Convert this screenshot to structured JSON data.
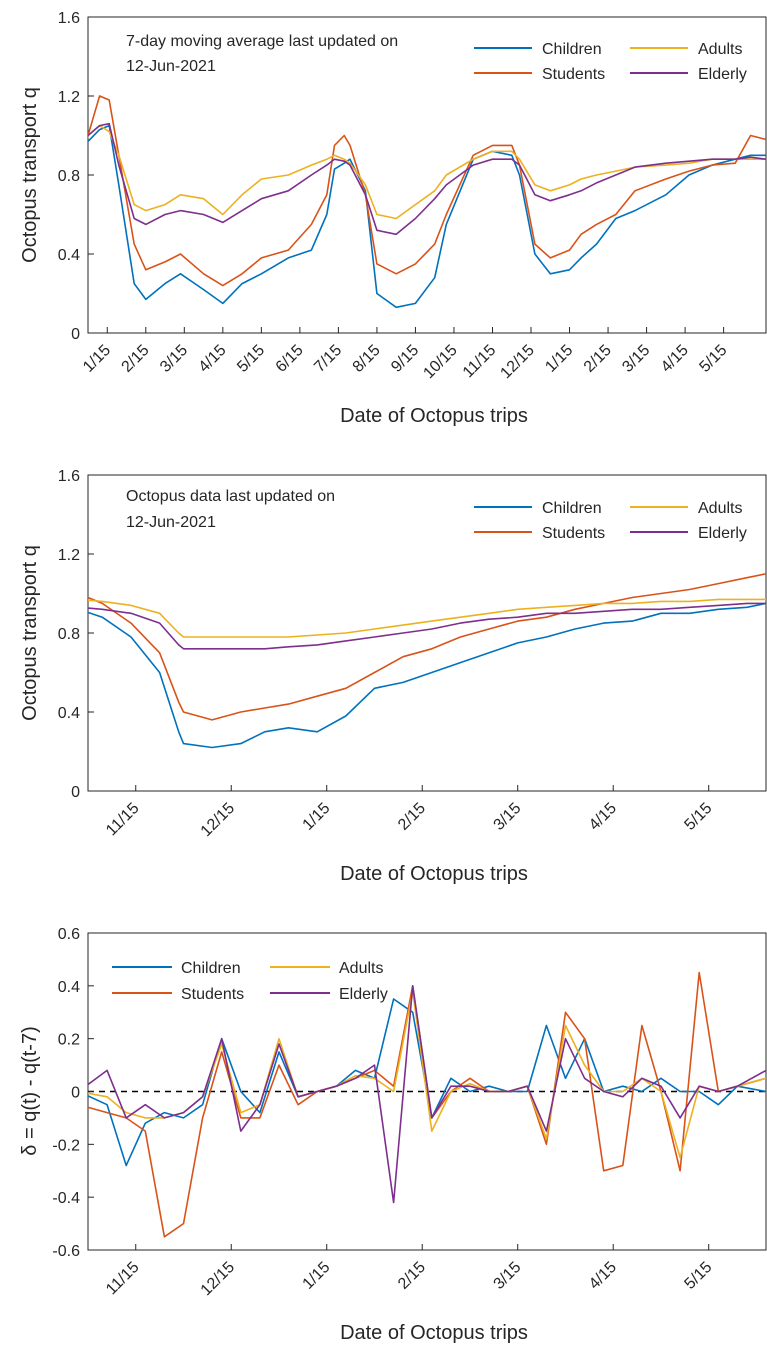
{
  "colors": {
    "Children": "#0072BD",
    "Students": "#D95319",
    "Adults": "#EDB120",
    "Elderly": "#7E2F8E",
    "axis": "#262626"
  },
  "chart_data": [
    {
      "type": "line",
      "annotation_line1": "7-day moving average last updated on",
      "annotation_line2": "12-Jun-2021",
      "xlabel": "Date of Octopus trips",
      "ylabel": "Octopus transport q",
      "xticks": [
        "1/15",
        "2/15",
        "3/15",
        "4/15",
        "5/15",
        "6/15",
        "7/15",
        "8/15",
        "9/15",
        "10/15",
        "11/15",
        "12/15",
        "1/15",
        "2/15",
        "3/15",
        "4/15",
        "5/15"
      ],
      "yticks": [
        "0",
        "0.4",
        "0.8",
        "1.2",
        "1.6"
      ],
      "ylim": [
        0,
        1.6
      ],
      "xlim": [
        0,
        17.6
      ],
      "legend": [
        "Children",
        "Students",
        "Adults",
        "Elderly"
      ],
      "legend_location": "top-right",
      "series": [
        {
          "name": "Children",
          "x": [
            -0.2,
            0,
            0.3,
            0.55,
            0.8,
            1.2,
            1.5,
            2,
            2.4,
            3,
            3.5,
            4,
            4.5,
            5.2,
            5.8,
            6.2,
            6.4,
            6.65,
            6.8,
            7.2,
            7.5,
            8,
            8.5,
            9,
            9.3,
            10,
            10.5,
            11,
            11.2,
            11.6,
            12,
            12.5,
            12.8,
            13.2,
            13.7,
            14.2,
            15,
            15.6,
            16.2,
            16.8,
            17.2,
            17.6
          ],
          "values": [
            0.95,
            0.97,
            1.03,
            1.05,
            0.75,
            0.25,
            0.17,
            0.25,
            0.3,
            0.22,
            0.15,
            0.25,
            0.3,
            0.38,
            0.42,
            0.6,
            0.83,
            0.86,
            0.88,
            0.72,
            0.2,
            0.13,
            0.15,
            0.28,
            0.55,
            0.88,
            0.92,
            0.9,
            0.8,
            0.4,
            0.3,
            0.32,
            0.38,
            0.45,
            0.58,
            0.62,
            0.7,
            0.8,
            0.85,
            0.88,
            0.9,
            0.9
          ]
        },
        {
          "name": "Students",
          "x": [
            -0.2,
            0,
            0.3,
            0.55,
            0.8,
            1.2,
            1.5,
            2,
            2.4,
            3,
            3.5,
            4,
            4.5,
            5.2,
            5.8,
            6.2,
            6.4,
            6.65,
            6.8,
            7.2,
            7.5,
            8,
            8.5,
            9,
            9.3,
            10,
            10.5,
            11,
            11.2,
            11.6,
            12,
            12.5,
            12.8,
            13.2,
            13.7,
            14.2,
            15,
            15.6,
            16.2,
            16.8,
            17.2,
            17.6
          ],
          "values": [
            0.82,
            1.0,
            1.2,
            1.18,
            0.9,
            0.45,
            0.32,
            0.36,
            0.4,
            0.3,
            0.24,
            0.3,
            0.38,
            0.42,
            0.55,
            0.7,
            0.95,
            1.0,
            0.95,
            0.7,
            0.35,
            0.3,
            0.35,
            0.45,
            0.6,
            0.9,
            0.95,
            0.95,
            0.85,
            0.45,
            0.38,
            0.42,
            0.5,
            0.55,
            0.6,
            0.72,
            0.78,
            0.82,
            0.85,
            0.86,
            1.0,
            0.98
          ]
        },
        {
          "name": "Adults",
          "x": [
            -0.2,
            0,
            0.3,
            0.55,
            0.8,
            1.2,
            1.5,
            2,
            2.4,
            3,
            3.5,
            4,
            4.5,
            5.2,
            5.8,
            6.2,
            6.4,
            6.65,
            6.8,
            7.2,
            7.5,
            8,
            8.5,
            9,
            9.3,
            10,
            10.5,
            11,
            11.2,
            11.6,
            12,
            12.5,
            12.8,
            13.2,
            13.7,
            14.2,
            15,
            15.6,
            16.2,
            16.8,
            17.2,
            17.6
          ],
          "values": [
            0.95,
            1.0,
            1.05,
            1.02,
            0.9,
            0.65,
            0.62,
            0.65,
            0.7,
            0.68,
            0.6,
            0.7,
            0.78,
            0.8,
            0.85,
            0.88,
            0.9,
            0.88,
            0.86,
            0.75,
            0.6,
            0.58,
            0.65,
            0.72,
            0.8,
            0.88,
            0.92,
            0.92,
            0.88,
            0.75,
            0.72,
            0.75,
            0.78,
            0.8,
            0.82,
            0.84,
            0.85,
            0.86,
            0.88,
            0.88,
            0.88,
            0.88
          ]
        },
        {
          "name": "Elderly",
          "x": [
            -0.2,
            0,
            0.3,
            0.55,
            0.8,
            1.2,
            1.5,
            2,
            2.4,
            3,
            3.5,
            4,
            4.5,
            5.2,
            5.8,
            6.2,
            6.4,
            6.65,
            6.8,
            7.2,
            7.5,
            8,
            8.5,
            9,
            9.3,
            10,
            10.5,
            11,
            11.2,
            11.6,
            12,
            12.5,
            12.8,
            13.2,
            13.7,
            14.2,
            15,
            15.6,
            16.2,
            16.8,
            17.2,
            17.6
          ],
          "values": [
            0.92,
            1.0,
            1.05,
            1.06,
            0.85,
            0.58,
            0.55,
            0.6,
            0.62,
            0.6,
            0.56,
            0.62,
            0.68,
            0.72,
            0.8,
            0.85,
            0.88,
            0.87,
            0.85,
            0.7,
            0.52,
            0.5,
            0.58,
            0.68,
            0.75,
            0.85,
            0.88,
            0.88,
            0.85,
            0.7,
            0.67,
            0.7,
            0.72,
            0.76,
            0.8,
            0.84,
            0.86,
            0.87,
            0.88,
            0.88,
            0.89,
            0.88
          ]
        }
      ]
    },
    {
      "type": "line",
      "annotation_line1": "Octopus data last updated on",
      "annotation_line2": "12-Jun-2021",
      "xlabel": "Date of Octopus trips",
      "ylabel": "Octopus transport q",
      "xticks": [
        "11/15",
        "12/15",
        "1/15",
        "2/15",
        "3/15",
        "4/15",
        "5/15"
      ],
      "yticks": [
        "0",
        "0.4",
        "0.8",
        "1.2",
        "1.6"
      ],
      "ylim": [
        0,
        1.6
      ],
      "xlim": [
        0,
        7.1
      ],
      "legend": [
        "Children",
        "Students",
        "Adults",
        "Elderly"
      ],
      "legend_location": "top-right",
      "series": [
        {
          "name": "Children",
          "x": [
            -0.1,
            0.15,
            0.45,
            0.75,
            0.95,
            1.0,
            1.3,
            1.6,
            1.85,
            2.1,
            2.4,
            2.7,
            3.0,
            3.3,
            3.6,
            3.9,
            4.2,
            4.5,
            4.8,
            5.1,
            5.4,
            5.7,
            6.0,
            6.3,
            6.6,
            6.9,
            7.1
          ],
          "values": [
            0.92,
            0.88,
            0.78,
            0.6,
            0.3,
            0.24,
            0.22,
            0.24,
            0.3,
            0.32,
            0.3,
            0.38,
            0.52,
            0.55,
            0.6,
            0.65,
            0.7,
            0.75,
            0.78,
            0.82,
            0.85,
            0.86,
            0.9,
            0.9,
            0.92,
            0.93,
            0.95
          ]
        },
        {
          "name": "Students",
          "x": [
            -0.1,
            0.15,
            0.45,
            0.75,
            0.95,
            1.0,
            1.3,
            1.6,
            1.85,
            2.1,
            2.4,
            2.7,
            3.0,
            3.3,
            3.6,
            3.9,
            4.2,
            4.5,
            4.8,
            5.1,
            5.4,
            5.7,
            6.0,
            6.3,
            6.6,
            6.9,
            7.1
          ],
          "values": [
            1.0,
            0.95,
            0.85,
            0.7,
            0.45,
            0.4,
            0.36,
            0.4,
            0.42,
            0.44,
            0.48,
            0.52,
            0.6,
            0.68,
            0.72,
            0.78,
            0.82,
            0.86,
            0.88,
            0.92,
            0.95,
            0.98,
            1.0,
            1.02,
            1.05,
            1.08,
            1.1
          ]
        },
        {
          "name": "Adults",
          "x": [
            -0.1,
            0.15,
            0.45,
            0.75,
            0.95,
            1.0,
            1.3,
            1.6,
            1.85,
            2.1,
            2.4,
            2.7,
            3.0,
            3.3,
            3.6,
            3.9,
            4.2,
            4.5,
            4.8,
            5.1,
            5.4,
            5.7,
            6.0,
            6.3,
            6.6,
            6.9,
            7.1
          ],
          "values": [
            0.97,
            0.96,
            0.94,
            0.9,
            0.8,
            0.78,
            0.78,
            0.78,
            0.78,
            0.78,
            0.79,
            0.8,
            0.82,
            0.84,
            0.86,
            0.88,
            0.9,
            0.92,
            0.93,
            0.94,
            0.95,
            0.95,
            0.96,
            0.96,
            0.97,
            0.97,
            0.97
          ]
        },
        {
          "name": "Elderly",
          "x": [
            -0.1,
            0.15,
            0.45,
            0.75,
            0.95,
            1.0,
            1.3,
            1.6,
            1.85,
            2.1,
            2.4,
            2.7,
            3.0,
            3.3,
            3.6,
            3.9,
            4.2,
            4.5,
            4.8,
            5.1,
            5.4,
            5.7,
            6.0,
            6.3,
            6.6,
            6.9,
            7.1
          ],
          "values": [
            0.93,
            0.92,
            0.9,
            0.85,
            0.74,
            0.72,
            0.72,
            0.72,
            0.72,
            0.73,
            0.74,
            0.76,
            0.78,
            0.8,
            0.82,
            0.85,
            0.87,
            0.88,
            0.9,
            0.9,
            0.91,
            0.92,
            0.92,
            0.93,
            0.94,
            0.95,
            0.95
          ]
        }
      ]
    },
    {
      "type": "line",
      "xlabel": "Date of Octopus trips",
      "ylabel": "δ = q(t) - q(t-7)",
      "xticks": [
        "11/15",
        "12/15",
        "1/15",
        "2/15",
        "3/15",
        "4/15",
        "5/15"
      ],
      "yticks": [
        "-0.6",
        "-0.4",
        "-0.2",
        "0",
        "0.2",
        "0.4",
        "0.6"
      ],
      "ylim": [
        -0.6,
        0.6
      ],
      "xlim": [
        0,
        7.1
      ],
      "legend": [
        "Children",
        "Students",
        "Adults",
        "Elderly"
      ],
      "legend_location": "top-left",
      "reference_line": 0,
      "series": [
        {
          "name": "Children",
          "x": [
            -0.1,
            0.2,
            0.4,
            0.6,
            0.8,
            1.0,
            1.2,
            1.4,
            1.6,
            1.8,
            2.0,
            2.2,
            2.4,
            2.6,
            2.8,
            3.0,
            3.2,
            3.4,
            3.6,
            3.8,
            4.0,
            4.2,
            4.4,
            4.6,
            4.8,
            5.0,
            5.2,
            5.4,
            5.6,
            5.8,
            6.0,
            6.2,
            6.4,
            6.6,
            6.8,
            7.1
          ],
          "values": [
            0.0,
            -0.05,
            -0.28,
            -0.12,
            -0.08,
            -0.1,
            -0.05,
            0.2,
            0.0,
            -0.08,
            0.15,
            -0.02,
            0.0,
            0.02,
            0.08,
            0.05,
            0.35,
            0.3,
            -0.1,
            0.05,
            0.0,
            0.02,
            0.0,
            0.0,
            0.25,
            0.05,
            0.2,
            0.0,
            0.02,
            0.0,
            0.05,
            0.0,
            0.0,
            -0.05,
            0.02,
            0.0
          ]
        },
        {
          "name": "Students",
          "x": [
            -0.1,
            0.2,
            0.4,
            0.6,
            0.8,
            1.0,
            1.2,
            1.4,
            1.6,
            1.8,
            2.0,
            2.2,
            2.4,
            2.6,
            2.8,
            3.0,
            3.2,
            3.4,
            3.6,
            3.8,
            4.0,
            4.2,
            4.4,
            4.6,
            4.8,
            5.0,
            5.2,
            5.4,
            5.6,
            5.8,
            6.0,
            6.2,
            6.4,
            6.6,
            6.8,
            7.1
          ],
          "values": [
            -0.05,
            -0.08,
            -0.1,
            -0.15,
            -0.55,
            -0.5,
            -0.1,
            0.15,
            -0.1,
            -0.1,
            0.1,
            -0.05,
            0.0,
            0.02,
            0.05,
            0.08,
            0.02,
            0.4,
            -0.1,
            0.0,
            0.05,
            0.0,
            0.0,
            0.02,
            -0.2,
            0.3,
            0.2,
            -0.3,
            -0.28,
            0.25,
            0.0,
            -0.3,
            0.45,
            0.0,
            0.02,
            0.05
          ]
        },
        {
          "name": "Adults",
          "x": [
            -0.1,
            0.2,
            0.4,
            0.6,
            0.8,
            1.0,
            1.2,
            1.4,
            1.6,
            1.8,
            2.0,
            2.2,
            2.4,
            2.6,
            2.8,
            3.0,
            3.2,
            3.4,
            3.6,
            3.8,
            4.0,
            4.2,
            4.4,
            4.6,
            4.8,
            5.0,
            5.2,
            5.4,
            5.6,
            5.8,
            6.0,
            6.2,
            6.4,
            6.6,
            6.8,
            7.1
          ],
          "values": [
            0.0,
            -0.02,
            -0.08,
            -0.1,
            -0.1,
            -0.08,
            -0.02,
            0.18,
            -0.08,
            -0.05,
            0.2,
            -0.02,
            0.0,
            0.02,
            0.06,
            0.05,
            0.0,
            0.38,
            -0.15,
            0.0,
            0.03,
            0.0,
            0.0,
            0.02,
            -0.18,
            0.25,
            0.1,
            0.0,
            0.0,
            0.05,
            0.0,
            -0.25,
            0.02,
            0.0,
            0.02,
            0.05
          ]
        },
        {
          "name": "Elderly",
          "x": [
            -0.1,
            0.2,
            0.4,
            0.6,
            0.8,
            1.0,
            1.2,
            1.4,
            1.6,
            1.8,
            2.0,
            2.2,
            2.4,
            2.6,
            2.8,
            3.0,
            3.2,
            3.4,
            3.6,
            3.8,
            4.0,
            4.2,
            4.4,
            4.6,
            4.8,
            5.0,
            5.2,
            5.4,
            5.6,
            5.8,
            6.0,
            6.2,
            6.4,
            6.6,
            6.8,
            7.1
          ],
          "values": [
            0.0,
            0.08,
            -0.1,
            -0.05,
            -0.1,
            -0.08,
            -0.02,
            0.2,
            -0.15,
            -0.05,
            0.18,
            -0.02,
            0.0,
            0.02,
            0.05,
            0.1,
            -0.42,
            0.4,
            -0.1,
            0.02,
            0.02,
            0.0,
            0.0,
            0.02,
            -0.15,
            0.2,
            0.05,
            0.0,
            -0.02,
            0.05,
            0.02,
            -0.1,
            0.02,
            0.0,
            0.02,
            0.08
          ]
        }
      ]
    }
  ]
}
